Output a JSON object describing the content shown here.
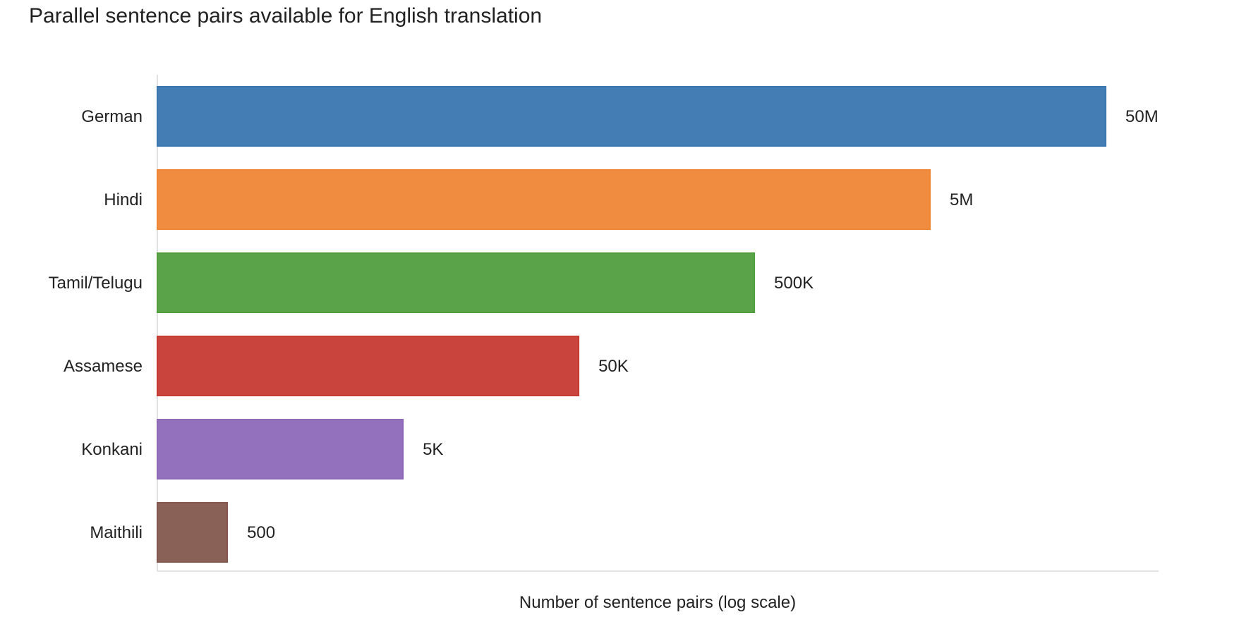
{
  "chart_data": {
    "type": "bar",
    "orientation": "horizontal",
    "title": "Parallel sentence pairs available for English translation",
    "xlabel": "Number of sentence pairs (log scale)",
    "ylabel": "",
    "x_scale": "log",
    "xlim": [
      200,
      100000000
    ],
    "grid": false,
    "legend": "none",
    "categories": [
      "German",
      "Hindi",
      "Tamil/Telugu",
      "Assamese",
      "Konkani",
      "Maithili"
    ],
    "values": [
      50000000,
      5000000,
      500000,
      50000,
      5000,
      500
    ],
    "data_labels": [
      "50M",
      "5M",
      "500K",
      "50K",
      "5K",
      "500"
    ],
    "colors": [
      "#3a76af",
      "#ef8636",
      "#519e3e",
      "#c53a32",
      "#8d69b8",
      "#84584e"
    ]
  }
}
